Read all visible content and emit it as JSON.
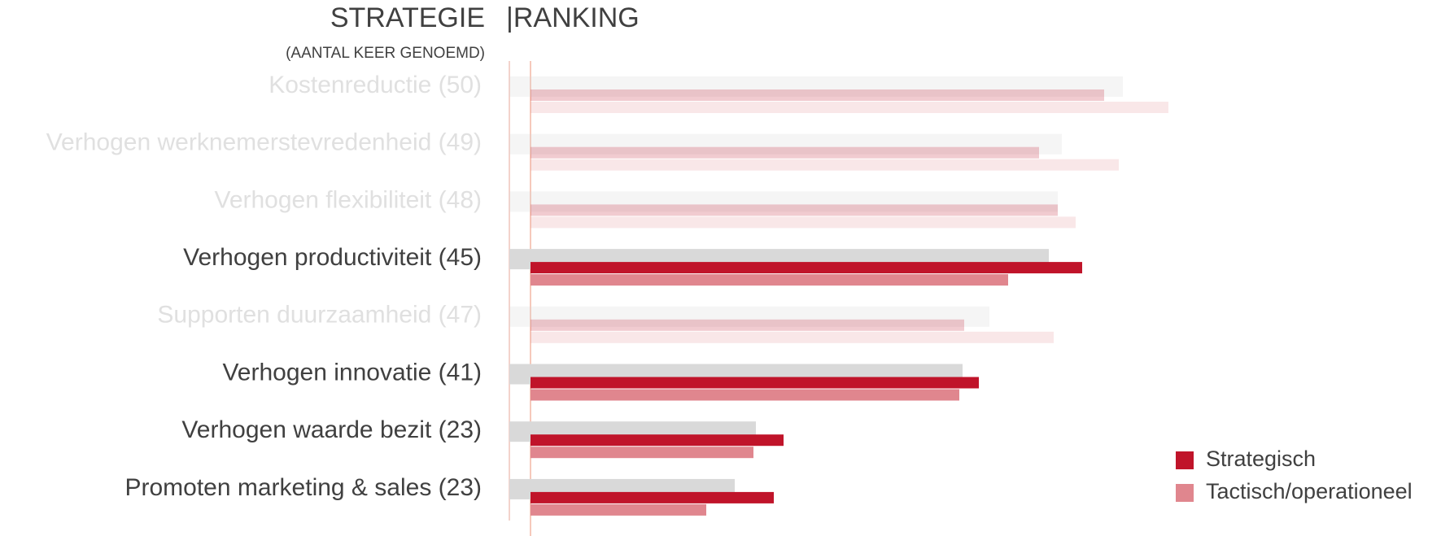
{
  "chart_data": {
    "type": "bar",
    "orientation": "horizontal",
    "title": "STRATEGIE",
    "title_right": "|RANKING",
    "subtitle": "(AANTAL KEER GENOEMD)",
    "categories": [
      "Kostenreductie (50)",
      "Verhogen werknemerstevredenheid (49)",
      "Verhogen flexibiliteit (48)",
      "Verhogen productiviteit (45)",
      "Supporten duurzaamheid (47)",
      "Verhogen innovatie (41)",
      "Verhogen waarde bezit (23)",
      "Promoten marketing & sales (23)"
    ],
    "highlight": [
      false,
      false,
      false,
      true,
      false,
      true,
      true,
      true
    ],
    "background_series": {
      "color": "#d9d9d9",
      "values": [
        75.4,
        67.9,
        67.4,
        66.3,
        59,
        55.7,
        30.3,
        27.7
      ]
    },
    "series": [
      {
        "name": "Strategisch",
        "color": "#c0142a",
        "values": [
          70.5,
          62.5,
          64.8,
          67.8,
          53.3,
          55.1,
          31.1,
          29.9
        ]
      },
      {
        "name": "Tactisch/operationeel",
        "color": "#e0868e",
        "values": [
          78.4,
          72.3,
          67,
          58.7,
          64.3,
          52.7,
          27.4,
          21.6
        ]
      }
    ],
    "xlim": [
      0,
      100
    ],
    "legend": "lower right"
  }
}
